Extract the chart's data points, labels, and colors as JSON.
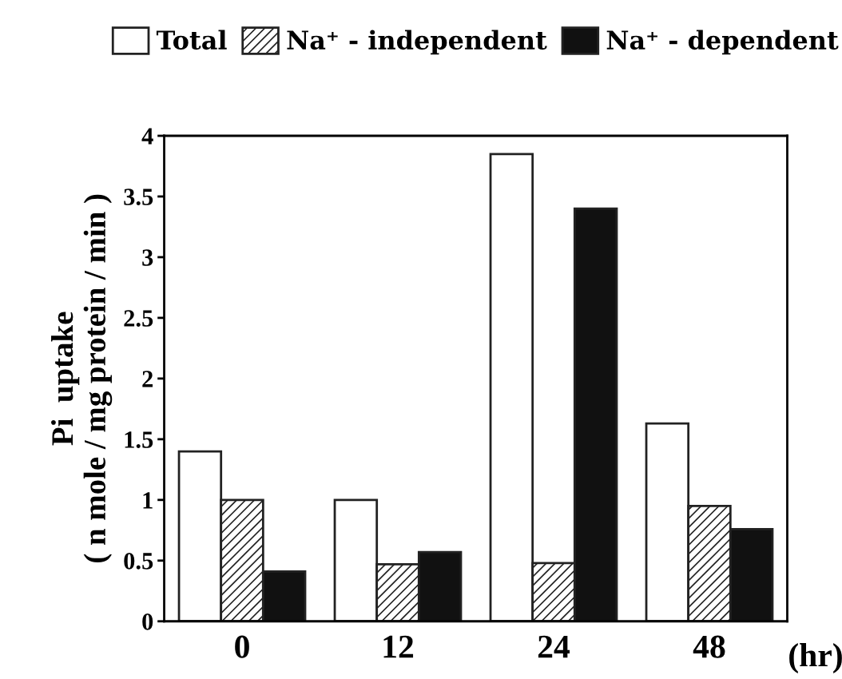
{
  "chart_data": {
    "type": "bar",
    "ylabel": "Pi  uptake\n( n mole / mg protein / min )",
    "xlabel": "(hr)",
    "categories": [
      "0",
      "12",
      "24",
      "48"
    ],
    "series": [
      {
        "name": "Total",
        "color": "#ffffff",
        "values": [
          1.4,
          1.0,
          3.85,
          1.63
        ]
      },
      {
        "name": "Na⁺ - independent",
        "color": "#222222",
        "values": [
          1.0,
          0.47,
          0.48,
          0.95
        ]
      },
      {
        "name": "Na⁺ - dependent",
        "color": "#111111",
        "values": [
          0.41,
          0.57,
          3.4,
          0.76
        ]
      }
    ],
    "ylim": [
      0,
      4
    ],
    "yticks": [
      0,
      0.5,
      1,
      1.5,
      2,
      2.5,
      3,
      3.5,
      4
    ],
    "grid": false,
    "legend": "top"
  }
}
